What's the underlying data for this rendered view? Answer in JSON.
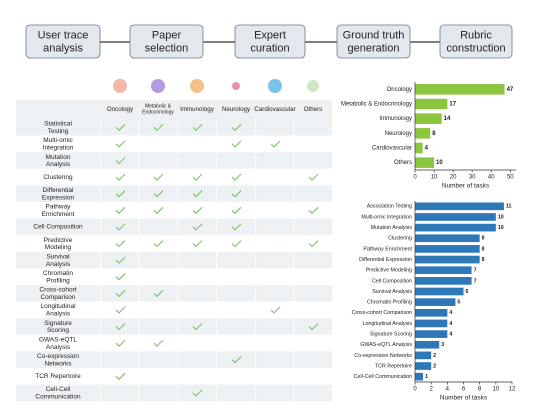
{
  "pipeline": {
    "steps": [
      "User trace analysis",
      "Paper selection",
      "Expert curation",
      "Ground truth generation",
      "Rubric construction"
    ]
  },
  "table": {
    "columns": [
      "Oncology",
      "Metabolic & Endocrinology",
      "Immunology",
      "Neurology",
      "Cardiovascular",
      "Others"
    ],
    "rows": [
      {
        "label": "Statistical Testing",
        "checks": [
          true,
          true,
          true,
          true,
          false,
          false
        ]
      },
      {
        "label": "Multi-omic Integration",
        "checks": [
          true,
          false,
          false,
          true,
          true,
          false
        ]
      },
      {
        "label": "Mutation Analysis",
        "checks": [
          true,
          false,
          false,
          false,
          false,
          false
        ]
      },
      {
        "label": "Clustering",
        "checks": [
          true,
          true,
          true,
          true,
          false,
          true
        ]
      },
      {
        "label": "Differential Expression",
        "checks": [
          true,
          true,
          true,
          true,
          false,
          false
        ]
      },
      {
        "label": "Pathway Enrichment",
        "checks": [
          true,
          true,
          true,
          true,
          false,
          true
        ]
      },
      {
        "label": "Cell Composition",
        "checks": [
          true,
          false,
          true,
          true,
          false,
          false
        ]
      },
      {
        "label": "Predictive Modeling",
        "checks": [
          true,
          true,
          true,
          true,
          false,
          true
        ]
      },
      {
        "label": "Survival Analysis",
        "checks": [
          true,
          false,
          false,
          false,
          false,
          false
        ]
      },
      {
        "label": "Chromatin Profiling",
        "checks": [
          true,
          false,
          false,
          false,
          false,
          false
        ]
      },
      {
        "label": "Cross-cohort Comparison",
        "checks": [
          true,
          true,
          false,
          false,
          false,
          false
        ]
      },
      {
        "label": "Longitudinal Analysis",
        "checks": [
          true,
          false,
          false,
          false,
          true,
          false
        ]
      },
      {
        "label": "Signature Scoring",
        "checks": [
          true,
          false,
          true,
          false,
          false,
          true
        ]
      },
      {
        "label": "GWAS-eQTL Analysis",
        "checks": [
          true,
          true,
          false,
          false,
          false,
          false
        ]
      },
      {
        "label": "Co-expression Networks",
        "checks": [
          false,
          false,
          false,
          true,
          false,
          false
        ]
      },
      {
        "label": "TCR Repertoire",
        "checks": [
          true,
          false,
          false,
          false,
          false,
          false
        ]
      },
      {
        "label": "Cell-Cell Communication",
        "checks": [
          false,
          false,
          true,
          false,
          false,
          false
        ]
      }
    ]
  },
  "chart_data": [
    {
      "type": "bar",
      "orientation": "horizontal",
      "xlabel": "Number of tasks",
      "color": "#8cc63f",
      "categories": [
        "Oncology",
        "Metabolic & Endocrinology",
        "Immunology",
        "Neurology",
        "Cardiovascular",
        "Others"
      ],
      "values": [
        47,
        17,
        14,
        8,
        4,
        10
      ],
      "xlim": [
        0,
        53
      ],
      "xticks": [
        0,
        10,
        20,
        30,
        40,
        50
      ]
    },
    {
      "type": "bar",
      "orientation": "horizontal",
      "xlabel": "Number of tasks",
      "color": "#2f78b7",
      "categories": [
        "Association Testing",
        "Multi-omic Integration",
        "Mutation Analysis",
        "Clustering",
        "Pathway Enrichment",
        "Differential Expression",
        "Predictive Modeling",
        "Cell Composition",
        "Survival Analysis",
        "Chromatin Profiling",
        "Cross-cohort Comparison",
        "Longitudinal Analysis",
        "Signature Scoring",
        "GWAS-eQTL Analysis",
        "Co-expression Networks",
        "TCR Repertoire",
        "Cell-Cell Communication"
      ],
      "values": [
        11,
        10,
        10,
        8,
        8,
        8,
        7,
        7,
        6,
        5,
        4,
        4,
        4,
        3,
        2,
        2,
        1
      ],
      "xlim": [
        0,
        12
      ],
      "xticks": [
        0,
        2,
        4,
        6,
        8,
        10,
        12
      ]
    }
  ]
}
